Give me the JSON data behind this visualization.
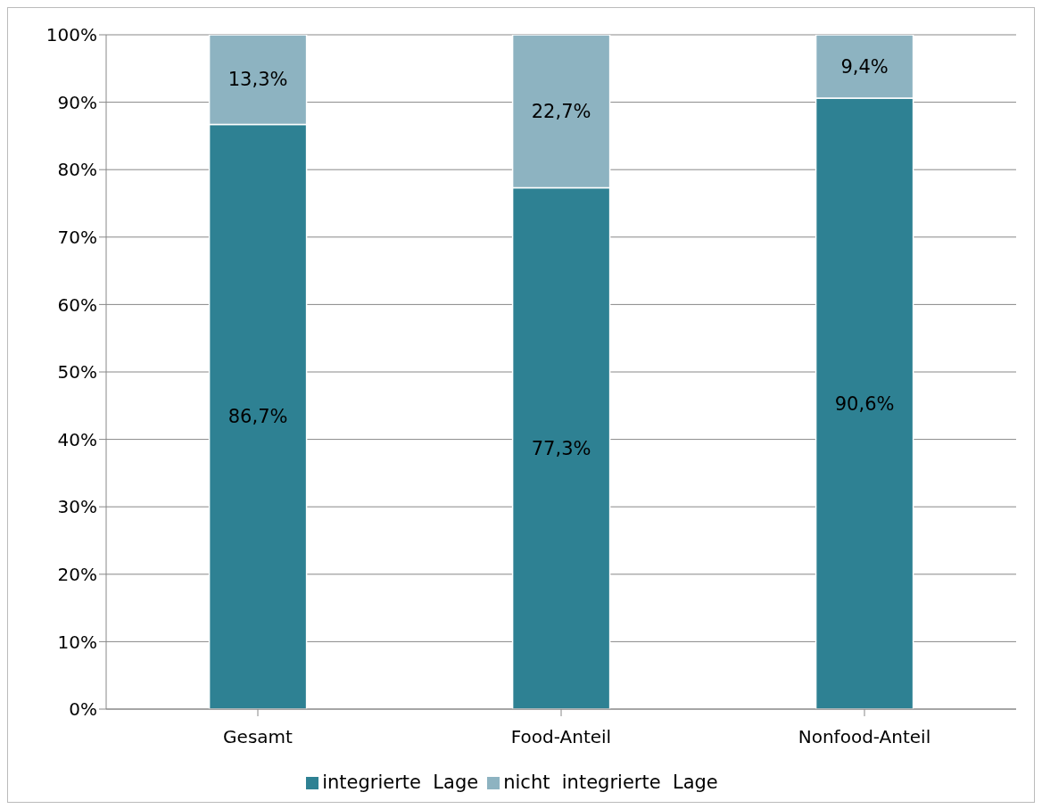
{
  "chart_data": {
    "type": "bar",
    "stacked": true,
    "categories": [
      "Gesamt",
      "Food-Anteil",
      "Nonfood-Anteil"
    ],
    "series": [
      {
        "name": "integrierte  Lage",
        "color": "#2e8193",
        "values": [
          86.7,
          77.3,
          90.6
        ],
        "value_labels": [
          "86,7%",
          "77,3%",
          "90,6%"
        ]
      },
      {
        "name": "nicht  integrierte  Lage",
        "color": "#8db3c1",
        "values": [
          13.3,
          22.7,
          9.4
        ],
        "value_labels": [
          "13,3%",
          "22,7%",
          "9,4%"
        ]
      }
    ],
    "ylim": [
      0,
      100
    ],
    "yticks": [
      {
        "value": 0,
        "label": "0%"
      },
      {
        "value": 10,
        "label": "10%"
      },
      {
        "value": 20,
        "label": "20%"
      },
      {
        "value": 30,
        "label": "30%"
      },
      {
        "value": 40,
        "label": "40%"
      },
      {
        "value": 50,
        "label": "50%"
      },
      {
        "value": 60,
        "label": "60%"
      },
      {
        "value": 70,
        "label": "70%"
      },
      {
        "value": 80,
        "label": "80%"
      },
      {
        "value": 90,
        "label": "90%"
      },
      {
        "value": 100,
        "label": "100%"
      }
    ],
    "grid": "y",
    "legend": "bottom"
  }
}
